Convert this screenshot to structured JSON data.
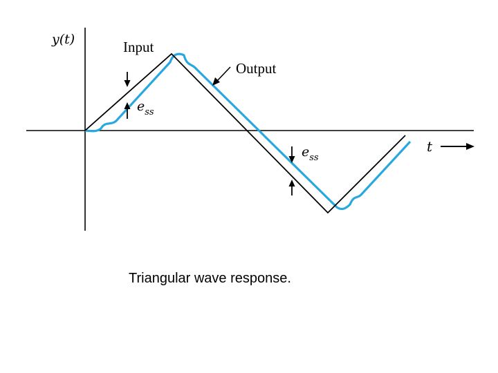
{
  "figure": {
    "y_axis_label": "y(t)",
    "t_axis_label": "t",
    "input_label": "Input",
    "output_label": "Output",
    "error_label_upper": {
      "base": "e",
      "sub": "ss"
    },
    "error_label_lower": {
      "base": "e",
      "sub": "ss"
    }
  },
  "caption": "Triangular wave response.",
  "colors": {
    "input_wave": "#000000",
    "output_wave": "#29a8df",
    "axes": "#000000"
  }
}
